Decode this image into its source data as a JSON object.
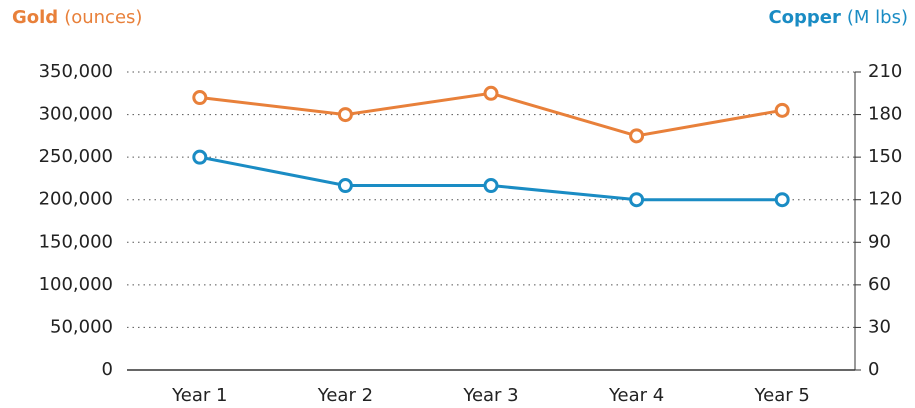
{
  "chart_data": {
    "type": "line",
    "categories": [
      "Year 1",
      "Year 2",
      "Year 3",
      "Year 4",
      "Year 5"
    ],
    "series": [
      {
        "name": "Gold",
        "color": "#e8803a",
        "values": [
          320000,
          300000,
          325000,
          275000,
          305000
        ]
      },
      {
        "name": "Copper",
        "color": "#1a8cc4",
        "axis": "y2",
        "values": [
          150,
          130,
          130,
          120,
          120
        ]
      }
    ],
    "ylabel": "(ounces)",
    "y2label": "(M lbs)",
    "ylim": [
      0,
      350000
    ],
    "yticks": [
      0,
      {
        "value": 50000,
        "label": "50,000"
      },
      {
        "value": 100000,
        "label": "100,000"
      },
      {
        "value": 150000,
        "label": "150,000"
      },
      {
        "value": 200000,
        "label": "200,000"
      },
      {
        "value": 250000,
        "label": "250,000"
      },
      {
        "value": 300000,
        "label": "300,000"
      },
      {
        "value": 350000,
        "label": "350,000"
      }
    ],
    "y2lim": [
      0,
      210
    ],
    "y2ticks": [
      0,
      30,
      60,
      90,
      120,
      150,
      180,
      210
    ],
    "grid": true
  }
}
